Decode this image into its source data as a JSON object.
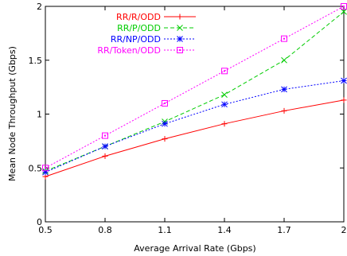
{
  "chart_data": {
    "type": "line",
    "title": "",
    "xlabel": "Average Arrival Rate (Gbps)",
    "ylabel": "Mean Node Throughput (Gbps)",
    "xlim": [
      0.5,
      2.0
    ],
    "ylim": [
      0,
      2.0
    ],
    "xticks": [
      0.5,
      0.8,
      1.1,
      1.4,
      1.7,
      2.0
    ],
    "xtick_labels": [
      "0.5",
      "0.8",
      "1.1",
      "1.4",
      "1.7",
      "2"
    ],
    "yticks": [
      0,
      0.5,
      1.0,
      1.5,
      2.0
    ],
    "ytick_labels": [
      "0",
      "0.5",
      "1",
      "1.5",
      "2"
    ],
    "grid": false,
    "legend_position": "top-left",
    "x": [
      0.5,
      0.8,
      1.1,
      1.4,
      1.7,
      2.0
    ],
    "series": [
      {
        "name": "RR/R/ODD",
        "color": "#ff0000",
        "marker": "plus",
        "dash": "solid",
        "values": [
          0.42,
          0.61,
          0.77,
          0.91,
          1.03,
          1.13
        ]
      },
      {
        "name": "RR/P/ODD",
        "color": "#00cc00",
        "marker": "cross",
        "dash": "dashed",
        "values": [
          0.47,
          0.7,
          0.93,
          1.18,
          1.5,
          1.95
        ]
      },
      {
        "name": "RR/NP/ODD",
        "color": "#0000ff",
        "marker": "star",
        "dash": "dotted",
        "values": [
          0.46,
          0.7,
          0.91,
          1.09,
          1.23,
          1.31
        ]
      },
      {
        "name": "RR/Token/ODD",
        "color": "#ff00ff",
        "marker": "square",
        "dash": "dotted",
        "values": [
          0.5,
          0.8,
          1.1,
          1.4,
          1.7,
          2.0
        ]
      }
    ]
  }
}
